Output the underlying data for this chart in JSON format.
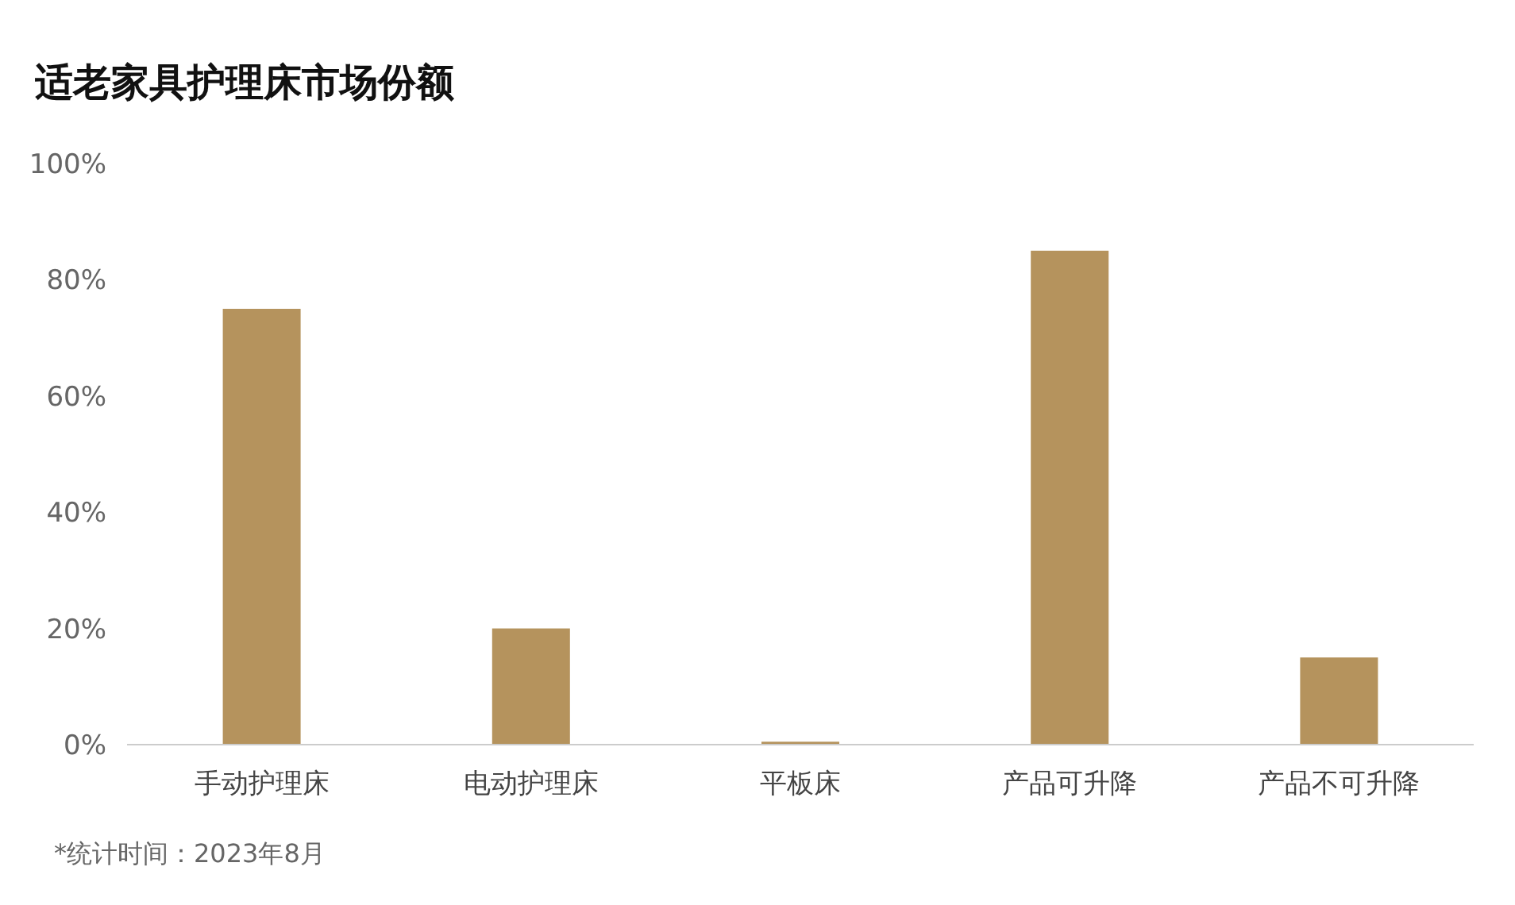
{
  "chart_data": {
    "type": "bar",
    "title": "适老家具护理床市场份额",
    "categories": [
      "手动护理床",
      "电动护理床",
      "平板床",
      "产品可升降",
      "产品不可升降"
    ],
    "values": [
      75,
      20,
      0.5,
      85,
      15
    ],
    "color": "#b5935d",
    "ylim": [
      0,
      100
    ],
    "yticks": [
      {
        "value": 0,
        "label": "0%"
      },
      {
        "value": 20,
        "label": "20%"
      },
      {
        "value": 40,
        "label": "40%"
      },
      {
        "value": 60,
        "label": "60%"
      },
      {
        "value": 80,
        "label": "80%"
      },
      {
        "value": 100,
        "label": "100%"
      }
    ],
    "annotations": [
      "*统计时间：2023年8月"
    ]
  }
}
